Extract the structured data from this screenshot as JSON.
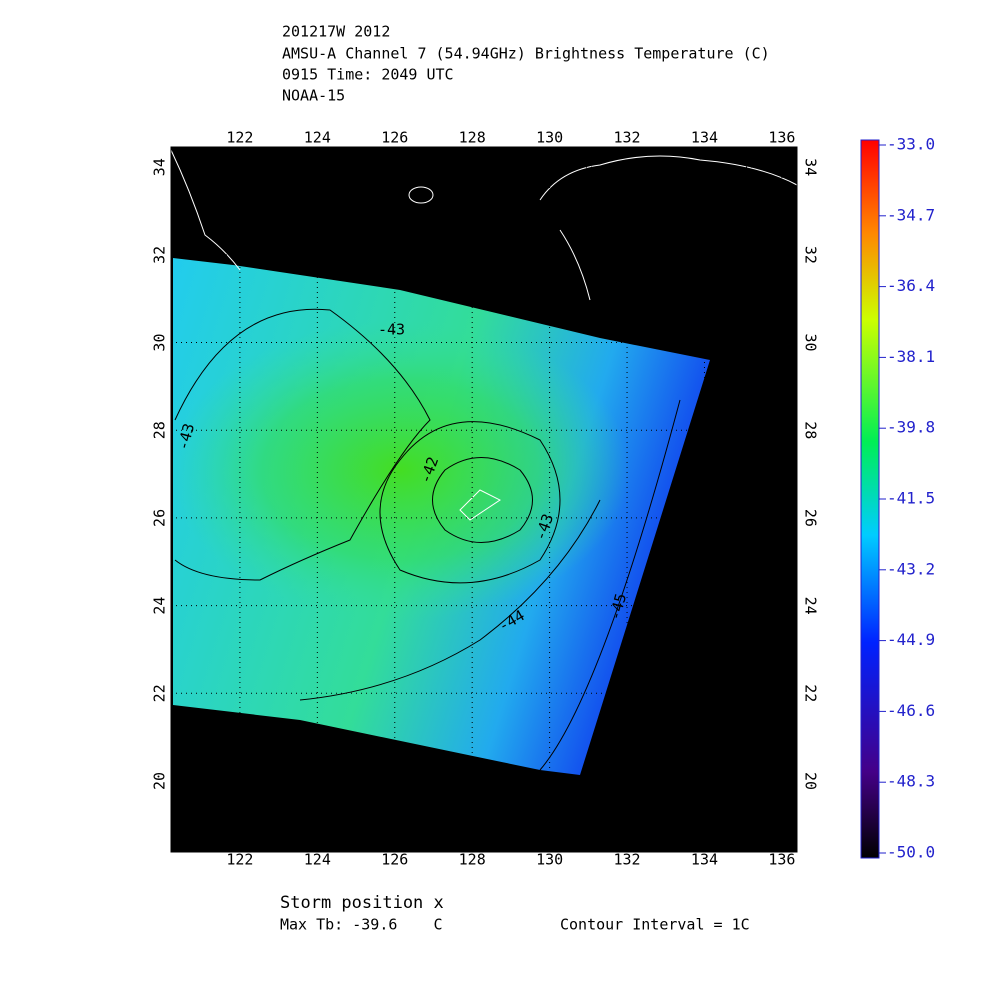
{
  "header": {
    "lines": [
      "201217W 2012",
      "AMSU-A Channel 7 (54.94GHz) Brightness Temperature (C)",
      "0915 Time: 2049 UTC",
      "NOAA-15"
    ]
  },
  "map": {
    "lonlim": [
      120.22,
      136.39
    ],
    "latlim": [
      18.38,
      34.46
    ],
    "lon_ticks": [
      122,
      124,
      126,
      128,
      130,
      132,
      134,
      136
    ],
    "lat_ticks": [
      20,
      22,
      24,
      26,
      28,
      30,
      32,
      34
    ],
    "contour_labels": [
      -43,
      -43,
      -42,
      -43,
      -44,
      -45
    ]
  },
  "colorbar": {
    "lim": [
      -50,
      -33
    ],
    "ticks": [
      {
        "value": -33,
        "label": "-33.0"
      },
      {
        "value": -34.7,
        "label": "-34.7"
      },
      {
        "value": -36.4,
        "label": "-36.4"
      },
      {
        "value": -38.1,
        "label": "-38.1"
      },
      {
        "value": -39.8,
        "label": "-39.8"
      },
      {
        "value": -41.5,
        "label": "-41.5"
      },
      {
        "value": -43.2,
        "label": "-43.2"
      },
      {
        "value": -44.9,
        "label": "-44.9"
      },
      {
        "value": -46.6,
        "label": "-46.6"
      },
      {
        "value": -48.3,
        "label": "-48.3"
      },
      {
        "value": -50,
        "label": "-50.0"
      }
    ]
  },
  "footer": {
    "storm": "Storm position x",
    "max_tb": "Max Tb: -39.6    C",
    "interval": "Contour Interval = 1C"
  }
}
